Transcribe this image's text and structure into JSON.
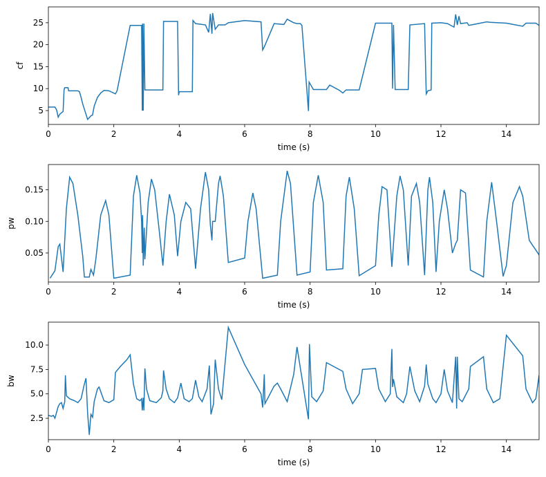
{
  "chart_data": [
    {
      "type": "line",
      "xlabel": "time (s)",
      "ylabel": "cf",
      "color": "#1f77b4",
      "xlim": [
        0,
        15
      ],
      "ylim": [
        1.85,
        28.6
      ],
      "xticks": [
        0,
        2,
        4,
        6,
        8,
        10,
        12,
        14
      ],
      "yticks": [
        5,
        10,
        15,
        20,
        25
      ],
      "x": [
        0,
        0.2,
        0.25,
        0.3,
        0.35,
        0.4,
        0.45,
        0.48,
        0.5,
        0.6,
        0.62,
        0.9,
        0.95,
        1.0,
        1.05,
        1.2,
        1.3,
        1.35,
        1.4,
        1.5,
        1.6,
        1.7,
        1.85,
        2.05,
        2.1,
        2.5,
        2.85,
        2.87,
        2.88,
        2.9,
        2.92,
        2.95,
        3.5,
        3.52,
        3.95,
        3.98,
        4.0,
        4.4,
        4.42,
        4.5,
        4.8,
        4.9,
        4.95,
        5.0,
        5.02,
        5.1,
        5.2,
        5.4,
        5.5,
        6.0,
        6.5,
        6.55,
        6.6,
        6.9,
        7.2,
        7.3,
        7.5,
        7.6,
        7.7,
        7.75,
        7.95,
        7.97,
        8.1,
        8.5,
        8.6,
        8.9,
        9.0,
        9.1,
        9.5,
        10.0,
        10.5,
        10.52,
        10.55,
        10.6,
        11.0,
        11.05,
        11.5,
        11.55,
        11.6,
        11.7,
        11.72,
        12.0,
        12.2,
        12.4,
        12.45,
        12.5,
        12.55,
        12.6,
        12.8,
        12.85,
        13.0,
        13.4,
        13.5,
        14.0,
        14.5,
        14.6,
        14.9,
        15
      ],
      "values": [
        5.8,
        5.8,
        5.2,
        3.5,
        4.2,
        4.5,
        4.8,
        9.8,
        10.2,
        10.2,
        9.5,
        9.5,
        9.3,
        8,
        6.5,
        3,
        3.8,
        4,
        6,
        8,
        9,
        9.6,
        9.5,
        8.8,
        9.5,
        24.4,
        24.4,
        5,
        24.8,
        5,
        24.8,
        9.7,
        9.7,
        25.3,
        25.3,
        8.5,
        9.3,
        9.3,
        25.5,
        24.8,
        24.5,
        22.8,
        27,
        22.5,
        27.2,
        23.5,
        24.5,
        24.5,
        25,
        25.5,
        25.2,
        18.8,
        19.5,
        24.8,
        24.6,
        25.8,
        25,
        24.8,
        24.8,
        24.4,
        4.9,
        11.5,
        9.8,
        9.8,
        10.8,
        9.6,
        9,
        9.7,
        9.7,
        24.9,
        24.9,
        10,
        24.5,
        9.8,
        9.8,
        24.5,
        24.8,
        8.8,
        9.5,
        9.7,
        24.9,
        25,
        24.8,
        24,
        26.9,
        24.5,
        26.5,
        24.8,
        25,
        24.4,
        24.6,
        25.2,
        25.1,
        24.9,
        24.2,
        24.9,
        24.9,
        24.4
      ]
    },
    {
      "type": "line",
      "xlabel": "time (s)",
      "ylabel": "pw",
      "color": "#1f77b4",
      "xlim": [
        0,
        15
      ],
      "ylim": [
        0.004,
        0.19
      ],
      "xticks": [
        0,
        2,
        4,
        6,
        8,
        10,
        12,
        14
      ],
      "yticks": [
        0.05,
        {
          "value": 0.1,
          "label": "0.10"
        },
        0.15
      ],
      "x": [
        0.05,
        0.2,
        0.3,
        0.35,
        0.45,
        0.55,
        0.65,
        0.75,
        0.9,
        1.05,
        1.1,
        1.25,
        1.3,
        1.38,
        1.45,
        1.6,
        1.75,
        1.85,
        2.0,
        2.5,
        2.6,
        2.7,
        2.8,
        2.85,
        2.87,
        2.88,
        2.9,
        2.93,
        2.95,
        3.05,
        3.15,
        3.25,
        3.4,
        3.5,
        3.6,
        3.7,
        3.85,
        3.95,
        4.05,
        4.2,
        4.35,
        4.5,
        4.65,
        4.8,
        4.9,
        4.95,
        5.0,
        5.02,
        5.1,
        5.2,
        5.25,
        5.35,
        5.5,
        6.0,
        6.1,
        6.25,
        6.35,
        6.55,
        7.0,
        7.1,
        7.3,
        7.4,
        7.6,
        8.0,
        8.1,
        8.25,
        8.4,
        8.5,
        9.0,
        9.1,
        9.2,
        9.35,
        9.5,
        10.0,
        10.1,
        10.2,
        10.35,
        10.5,
        10.65,
        10.75,
        10.85,
        11.0,
        11.1,
        11.25,
        11.35,
        11.5,
        11.6,
        11.65,
        11.75,
        11.85,
        11.95,
        12.1,
        12.2,
        12.35,
        12.45,
        12.5,
        12.6,
        12.75,
        12.9,
        13.3,
        13.4,
        13.55,
        13.7,
        13.9,
        14.0,
        14.2,
        14.4,
        14.5,
        14.7,
        15.0
      ],
      "values": [
        0.01,
        0.022,
        0.06,
        0.064,
        0.02,
        0.12,
        0.17,
        0.16,
        0.11,
        0.045,
        0.012,
        0.012,
        0.024,
        0.015,
        0.04,
        0.11,
        0.133,
        0.11,
        0.01,
        0.015,
        0.14,
        0.173,
        0.145,
        0.1,
        0.05,
        0.11,
        0.03,
        0.09,
        0.04,
        0.13,
        0.167,
        0.15,
        0.08,
        0.03,
        0.1,
        0.143,
        0.11,
        0.045,
        0.1,
        0.13,
        0.12,
        0.025,
        0.12,
        0.178,
        0.15,
        0.095,
        0.07,
        0.1,
        0.1,
        0.16,
        0.172,
        0.14,
        0.035,
        0.042,
        0.1,
        0.145,
        0.12,
        0.01,
        0.015,
        0.1,
        0.18,
        0.16,
        0.015,
        0.02,
        0.13,
        0.173,
        0.13,
        0.023,
        0.025,
        0.14,
        0.17,
        0.12,
        0.014,
        0.03,
        0.11,
        0.155,
        0.15,
        0.028,
        0.14,
        0.172,
        0.15,
        0.03,
        0.14,
        0.16,
        0.13,
        0.015,
        0.15,
        0.17,
        0.13,
        0.02,
        0.1,
        0.15,
        0.12,
        0.05,
        0.065,
        0.07,
        0.15,
        0.145,
        0.023,
        0.012,
        0.1,
        0.162,
        0.1,
        0.013,
        0.03,
        0.13,
        0.155,
        0.14,
        0.07,
        0.047
      ]
    },
    {
      "type": "line",
      "xlabel": "time (s)",
      "ylabel": "bw",
      "color": "#1f77b4",
      "xlim": [
        0,
        15
      ],
      "ylim": [
        0.31,
        12.34
      ],
      "xticks": [
        0,
        2,
        4,
        6,
        8,
        10,
        12,
        14
      ],
      "yticks": [
        2.5,
        {
          "value": 5,
          "label": "5.0"
        },
        7.5,
        {
          "value": 10,
          "label": "10.0"
        }
      ],
      "x": [
        0,
        0.1,
        0.15,
        0.2,
        0.3,
        0.35,
        0.4,
        0.45,
        0.5,
        0.52,
        0.55,
        0.65,
        0.8,
        0.9,
        1.0,
        1.1,
        1.15,
        1.2,
        1.25,
        1.3,
        1.35,
        1.4,
        1.5,
        1.55,
        1.7,
        1.85,
        2.0,
        2.05,
        2.2,
        2.4,
        2.5,
        2.6,
        2.7,
        2.8,
        2.85,
        2.87,
        2.9,
        2.92,
        2.95,
        3.0,
        3.1,
        3.3,
        3.45,
        3.5,
        3.52,
        3.6,
        3.7,
        3.85,
        3.95,
        4.05,
        4.15,
        4.3,
        4.4,
        4.5,
        4.6,
        4.7,
        4.85,
        4.92,
        4.97,
        5.05,
        5.1,
        5.2,
        5.3,
        5.5,
        6.0,
        6.5,
        6.55,
        6.6,
        6.62,
        6.7,
        6.9,
        7.0,
        7.1,
        7.3,
        7.5,
        7.6,
        7.95,
        7.98,
        8.05,
        8.2,
        8.4,
        8.5,
        9.0,
        9.1,
        9.3,
        9.5,
        9.6,
        10.0,
        10.1,
        10.3,
        10.45,
        10.5,
        10.52,
        10.55,
        10.65,
        10.85,
        10.95,
        11.05,
        11.2,
        11.35,
        11.5,
        11.55,
        11.6,
        11.75,
        11.85,
        12.0,
        12.1,
        12.2,
        12.35,
        12.45,
        12.48,
        12.5,
        12.55,
        12.65,
        12.85,
        12.9,
        13.3,
        13.4,
        13.6,
        13.8,
        14.0,
        14.5,
        14.6,
        14.8,
        14.9,
        15.0
      ],
      "values": [
        2.8,
        2.7,
        2.8,
        2.5,
        3.7,
        4,
        4.1,
        3.5,
        4.2,
        6.9,
        4.8,
        4.5,
        4.3,
        4.1,
        4.5,
        6,
        6.6,
        3,
        0.8,
        2.9,
        2.6,
        4.2,
        5.5,
        5.7,
        4.3,
        4.1,
        4.4,
        7.2,
        7.8,
        8.5,
        9,
        6,
        4.5,
        4.3,
        4.5,
        3.3,
        4.6,
        3.3,
        7.6,
        5.5,
        4.3,
        4.1,
        4.6,
        5.3,
        7.4,
        5.5,
        4.5,
        4.1,
        4.6,
        6.1,
        4.5,
        4.2,
        4.5,
        6.4,
        4.7,
        4.2,
        5.5,
        7.9,
        2.9,
        4,
        8.5,
        5.5,
        4.4,
        11.8,
        8,
        5,
        3.6,
        7,
        4,
        4.5,
        5.8,
        6.1,
        5.5,
        4.2,
        7,
        9.8,
        2.4,
        10.1,
        4.7,
        4.2,
        5.3,
        8.2,
        7.3,
        5.5,
        4,
        5,
        7.5,
        7.6,
        5.5,
        4.2,
        5,
        9.6,
        5.7,
        6.5,
        4.7,
        4.1,
        5,
        7.8,
        5.3,
        4.2,
        5.8,
        8,
        6,
        4.5,
        4.1,
        5,
        7.5,
        5.3,
        4.1,
        8.8,
        3.5,
        8.8,
        4.5,
        4.2,
        5.5,
        7.8,
        8.8,
        5.5,
        4.1,
        4.5,
        11,
        8.9,
        5.5,
        4.1,
        4.5,
        6.9
      ]
    }
  ]
}
